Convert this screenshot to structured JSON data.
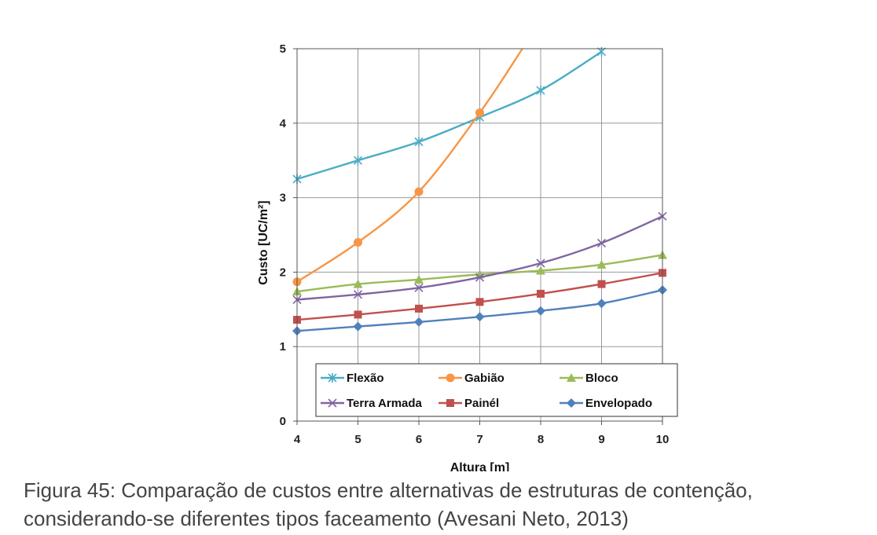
{
  "chart_data": {
    "type": "line",
    "xlabel": "Altura [m]",
    "ylabel": "Custo [UC/m²]",
    "xlim": [
      4,
      10
    ],
    "ylim": [
      0,
      5
    ],
    "xticks": [
      4,
      5,
      6,
      7,
      8,
      9,
      10
    ],
    "yticks": [
      0,
      1,
      2,
      3,
      4,
      5
    ],
    "grid": true,
    "legend_position": "lower-right inside plot, two rows",
    "series": [
      {
        "name": "Flexão",
        "color": "#4BACC6",
        "marker": "asterisk",
        "x": [
          4,
          5,
          6,
          7,
          8,
          9
        ],
        "y": [
          3.25,
          3.5,
          3.75,
          4.08,
          4.44,
          4.96
        ]
      },
      {
        "name": "Gabião",
        "color": "#F79646",
        "marker": "circle",
        "x": [
          4,
          5,
          6,
          7,
          7.7
        ],
        "y": [
          1.87,
          2.4,
          3.08,
          4.14,
          5.0
        ]
      },
      {
        "name": "Bloco",
        "color": "#9BBB59",
        "marker": "triangle",
        "x": [
          4,
          5,
          6,
          7,
          8,
          9,
          10
        ],
        "y": [
          1.74,
          1.84,
          1.9,
          1.97,
          2.02,
          2.1,
          2.23
        ]
      },
      {
        "name": "Terra Armada",
        "color": "#8064A2",
        "marker": "x",
        "x": [
          4,
          5,
          6,
          7,
          8,
          9,
          10
        ],
        "y": [
          1.63,
          1.7,
          1.79,
          1.93,
          2.12,
          2.39,
          2.75
        ]
      },
      {
        "name": "Painél",
        "color": "#C0504D",
        "marker": "square",
        "x": [
          4,
          5,
          6,
          7,
          8,
          9,
          10
        ],
        "y": [
          1.36,
          1.43,
          1.51,
          1.6,
          1.71,
          1.84,
          1.99
        ]
      },
      {
        "name": "Envelopado",
        "color": "#4F81BD",
        "marker": "diamond",
        "x": [
          4,
          5,
          6,
          7,
          8,
          9,
          10
        ],
        "y": [
          1.21,
          1.27,
          1.33,
          1.4,
          1.48,
          1.58,
          1.76
        ]
      }
    ]
  },
  "caption": {
    "line1": "Figura 45: Comparação de custos entre alternativas de estruturas de contenção,",
    "line2": "considerando-se diferentes tipos faceamento (Avesani Neto, 2013)"
  }
}
